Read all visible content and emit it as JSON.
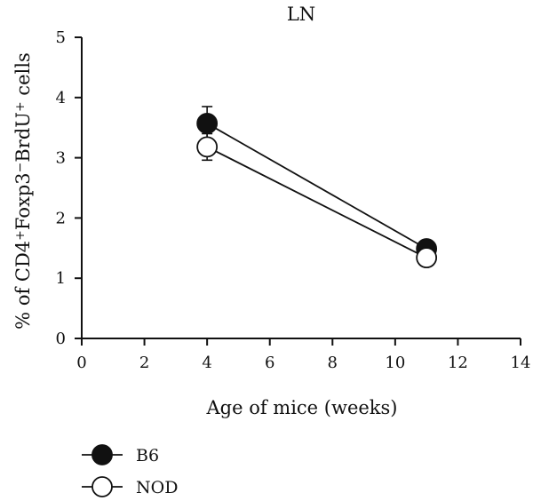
{
  "chart_data": {
    "type": "line",
    "title": "LN",
    "xlabel": "Age of mice (weeks)",
    "ylabel_parts": [
      {
        "t": "% of CD4",
        "sup": false
      },
      {
        "t": "+",
        "sup": true
      },
      {
        "t": "Foxp3",
        "sup": false
      },
      {
        "t": "−",
        "sup": true
      },
      {
        "t": "BrdU",
        "sup": false
      },
      {
        "t": "+",
        "sup": true
      },
      {
        "t": " cells",
        "sup": false
      }
    ],
    "xlim": [
      0,
      14
    ],
    "ylim": [
      0,
      5
    ],
    "xticks": [
      0,
      2,
      4,
      6,
      8,
      10,
      12,
      14
    ],
    "yticks": [
      0,
      1,
      2,
      3,
      4,
      5
    ],
    "grid": false,
    "legend_position": "bottom-left",
    "series": [
      {
        "name": "B6",
        "marker": "filled-circle",
        "color": "#111111",
        "x": [
          4,
          11
        ],
        "y": [
          3.57,
          1.49
        ],
        "err": [
          0.28,
          0.06
        ]
      },
      {
        "name": "NOD",
        "marker": "open-circle",
        "color": "#111111",
        "x": [
          4,
          11
        ],
        "y": [
          3.18,
          1.34
        ],
        "err": [
          0.22,
          0.05
        ]
      }
    ]
  }
}
